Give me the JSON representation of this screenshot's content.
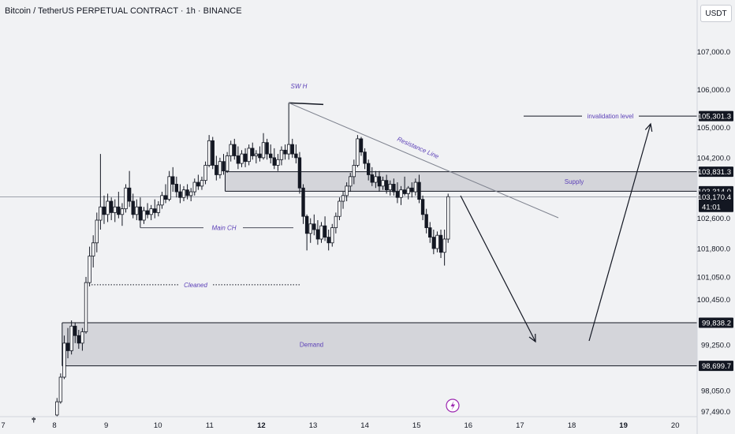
{
  "title": "Bitcoin / TetherUS PERPETUAL CONTRACT · 1h · BINANCE",
  "currency": "USDT",
  "chart_data": {
    "type": "candlestick",
    "x_ticks": [
      {
        "label": "7",
        "day": 7,
        "bold": false
      },
      {
        "label": "8",
        "day": 8,
        "bold": false
      },
      {
        "label": "9",
        "day": 9,
        "bold": false
      },
      {
        "label": "10",
        "day": 10,
        "bold": false
      },
      {
        "label": "11",
        "day": 11,
        "bold": false
      },
      {
        "label": "12",
        "day": 12,
        "bold": true
      },
      {
        "label": "13",
        "day": 13,
        "bold": false
      },
      {
        "label": "14",
        "day": 14,
        "bold": false
      },
      {
        "label": "15",
        "day": 15,
        "bold": false
      },
      {
        "label": "16",
        "day": 16,
        "bold": false
      },
      {
        "label": "17",
        "day": 17,
        "bold": false
      },
      {
        "label": "18",
        "day": 18,
        "bold": false
      },
      {
        "label": "19",
        "day": 19,
        "bold": true
      },
      {
        "label": "20",
        "day": 20,
        "bold": false
      }
    ],
    "y_ticks": [
      {
        "label": "107,000.0",
        "value": 107000
      },
      {
        "label": "106,000.0",
        "value": 106000
      },
      {
        "label": "105,000.0",
        "value": 105000
      },
      {
        "label": "104,200.0",
        "value": 104200
      },
      {
        "label": "102,600.0",
        "value": 102600
      },
      {
        "label": "101,800.0",
        "value": 101800
      },
      {
        "label": "101,050.0",
        "value": 101050
      },
      {
        "label": "100,450.0",
        "value": 100450
      },
      {
        "label": "99,250.0",
        "value": 99250
      },
      {
        "label": "98,050.0",
        "value": 98050
      },
      {
        "label": "97,490.0",
        "value": 97490
      }
    ],
    "price_levels": [
      {
        "label": "105,301.3",
        "value": 105301.3,
        "style": "dark"
      },
      {
        "label": "103,831.3",
        "value": 103831.3,
        "style": "dark"
      },
      {
        "label": "103,314.0",
        "value": 103314.0,
        "style": "dark"
      },
      {
        "label": "103,170.4",
        "value": 103170.4,
        "style": "dark",
        "sub": "41:01"
      },
      {
        "label": "99,838.2",
        "value": 99838.2,
        "style": "dark"
      },
      {
        "label": "98,699.7",
        "value": 98699.7,
        "style": "dark"
      }
    ],
    "zones": [
      {
        "label": "Supply",
        "top": 103831.3,
        "bottom": 103314.0,
        "day_start": 11.3,
        "day_end": 20.6
      },
      {
        "label": "Demand",
        "top": 99838.2,
        "bottom": 98699.7,
        "day_start": 8.15,
        "day_end": 20.6
      }
    ],
    "annotations": [
      {
        "label": "SW H",
        "day": 12.6,
        "value": 105850
      },
      {
        "label": "Main CH",
        "day": 11.3,
        "value": 102350
      },
      {
        "label": "Cleaned",
        "day": 10.7,
        "value": 101050
      },
      {
        "label": "Resistance Line",
        "day": 14.9,
        "value": 104250
      },
      {
        "label": "invalidation level",
        "day": 18.8,
        "value": 105301.3
      }
    ],
    "candles": [
      {
        "day": 7.6,
        "o": 97280,
        "h": 97340,
        "l": 97200,
        "c": 97310
      },
      {
        "day": 8.05,
        "o": 97400,
        "h": 97850,
        "l": 97350,
        "c": 97750
      },
      {
        "day": 8.12,
        "o": 97750,
        "h": 98500,
        "l": 97700,
        "c": 98400
      },
      {
        "day": 8.19,
        "o": 98400,
        "h": 99500,
        "l": 98350,
        "c": 99300
      },
      {
        "day": 8.26,
        "o": 99300,
        "h": 99700,
        "l": 98900,
        "c": 99100
      },
      {
        "day": 8.33,
        "o": 99100,
        "h": 99900,
        "l": 99000,
        "c": 99750
      },
      {
        "day": 8.4,
        "o": 99750,
        "h": 99850,
        "l": 99300,
        "c": 99500
      },
      {
        "day": 8.47,
        "o": 99500,
        "h": 99650,
        "l": 99150,
        "c": 99300
      },
      {
        "day": 8.54,
        "o": 99300,
        "h": 99700,
        "l": 99100,
        "c": 99600
      },
      {
        "day": 8.61,
        "o": 99600,
        "h": 101050,
        "l": 99550,
        "c": 100900
      },
      {
        "day": 8.68,
        "o": 100900,
        "h": 101850,
        "l": 100800,
        "c": 101600
      },
      {
        "day": 8.75,
        "o": 101600,
        "h": 102150,
        "l": 101300,
        "c": 101950
      },
      {
        "day": 8.82,
        "o": 101950,
        "h": 102750,
        "l": 101700,
        "c": 102550
      },
      {
        "day": 8.89,
        "o": 102550,
        "h": 104300,
        "l": 102300,
        "c": 102900
      },
      {
        "day": 8.96,
        "o": 102900,
        "h": 103200,
        "l": 102450,
        "c": 102700
      },
      {
        "day": 9.03,
        "o": 102700,
        "h": 103250,
        "l": 102500,
        "c": 103050
      },
      {
        "day": 9.1,
        "o": 103050,
        "h": 103150,
        "l": 102550,
        "c": 102750
      },
      {
        "day": 9.17,
        "o": 102750,
        "h": 103100,
        "l": 102500,
        "c": 102900
      },
      {
        "day": 9.24,
        "o": 102900,
        "h": 103300,
        "l": 102600,
        "c": 102700
      },
      {
        "day": 9.31,
        "o": 102700,
        "h": 103000,
        "l": 102400,
        "c": 102850
      },
      {
        "day": 9.38,
        "o": 102850,
        "h": 103500,
        "l": 102750,
        "c": 103400
      },
      {
        "day": 9.45,
        "o": 103400,
        "h": 103850,
        "l": 102900,
        "c": 103050
      },
      {
        "day": 9.52,
        "o": 103050,
        "h": 103250,
        "l": 102600,
        "c": 102700
      },
      {
        "day": 9.59,
        "o": 102700,
        "h": 103100,
        "l": 102550,
        "c": 102900
      },
      {
        "day": 9.66,
        "o": 102900,
        "h": 103150,
        "l": 102350,
        "c": 102550
      },
      {
        "day": 9.73,
        "o": 102550,
        "h": 102900,
        "l": 102450,
        "c": 102800
      },
      {
        "day": 9.8,
        "o": 102800,
        "h": 103000,
        "l": 102600,
        "c": 102700
      },
      {
        "day": 9.87,
        "o": 102700,
        "h": 102950,
        "l": 102550,
        "c": 102850
      },
      {
        "day": 9.94,
        "o": 102850,
        "h": 103100,
        "l": 102600,
        "c": 102750
      },
      {
        "day": 10.01,
        "o": 102750,
        "h": 103050,
        "l": 102650,
        "c": 102950
      },
      {
        "day": 10.08,
        "o": 102950,
        "h": 103300,
        "l": 102850,
        "c": 103200
      },
      {
        "day": 10.15,
        "o": 103200,
        "h": 103500,
        "l": 103000,
        "c": 103100
      },
      {
        "day": 10.22,
        "o": 103100,
        "h": 103850,
        "l": 103050,
        "c": 103700
      },
      {
        "day": 10.29,
        "o": 103700,
        "h": 103950,
        "l": 103300,
        "c": 103500
      },
      {
        "day": 10.36,
        "o": 103500,
        "h": 103700,
        "l": 103150,
        "c": 103300
      },
      {
        "day": 10.43,
        "o": 103300,
        "h": 103500,
        "l": 103000,
        "c": 103150
      },
      {
        "day": 10.5,
        "o": 103150,
        "h": 103450,
        "l": 103050,
        "c": 103350
      },
      {
        "day": 10.57,
        "o": 103350,
        "h": 103500,
        "l": 103100,
        "c": 103200
      },
      {
        "day": 10.64,
        "o": 103200,
        "h": 103400,
        "l": 103050,
        "c": 103300
      },
      {
        "day": 10.71,
        "o": 103300,
        "h": 103650,
        "l": 103200,
        "c": 103550
      },
      {
        "day": 10.78,
        "o": 103550,
        "h": 103750,
        "l": 103350,
        "c": 103450
      },
      {
        "day": 10.85,
        "o": 103450,
        "h": 103700,
        "l": 103350,
        "c": 103600
      },
      {
        "day": 10.92,
        "o": 103600,
        "h": 104100,
        "l": 103500,
        "c": 104000
      },
      {
        "day": 10.99,
        "o": 104000,
        "h": 104800,
        "l": 103950,
        "c": 104650
      },
      {
        "day": 11.06,
        "o": 104650,
        "h": 104750,
        "l": 103900,
        "c": 104000
      },
      {
        "day": 11.13,
        "o": 104000,
        "h": 104250,
        "l": 103600,
        "c": 103750
      },
      {
        "day": 11.2,
        "o": 103750,
        "h": 104200,
        "l": 103650,
        "c": 104100
      },
      {
        "day": 11.27,
        "o": 104100,
        "h": 104300,
        "l": 103750,
        "c": 103850
      },
      {
        "day": 11.34,
        "o": 103850,
        "h": 104350,
        "l": 103800,
        "c": 104250
      },
      {
        "day": 11.41,
        "o": 104250,
        "h": 104650,
        "l": 104100,
        "c": 104550
      },
      {
        "day": 11.48,
        "o": 104550,
        "h": 104700,
        "l": 104150,
        "c": 104250
      },
      {
        "day": 11.55,
        "o": 104250,
        "h": 104500,
        "l": 103900,
        "c": 104050
      },
      {
        "day": 11.62,
        "o": 104050,
        "h": 104400,
        "l": 103950,
        "c": 104300
      },
      {
        "day": 11.69,
        "o": 104300,
        "h": 104450,
        "l": 103950,
        "c": 104100
      },
      {
        "day": 11.76,
        "o": 104100,
        "h": 104550,
        "l": 104000,
        "c": 104450
      },
      {
        "day": 11.83,
        "o": 104450,
        "h": 104600,
        "l": 104150,
        "c": 104250
      },
      {
        "day": 11.9,
        "o": 104250,
        "h": 104400,
        "l": 104050,
        "c": 104300
      },
      {
        "day": 11.97,
        "o": 104300,
        "h": 104500,
        "l": 104100,
        "c": 104200
      },
      {
        "day": 12.04,
        "o": 104200,
        "h": 104850,
        "l": 104150,
        "c": 104600
      },
      {
        "day": 12.11,
        "o": 104600,
        "h": 104700,
        "l": 104150,
        "c": 104300
      },
      {
        "day": 12.18,
        "o": 104300,
        "h": 104550,
        "l": 104050,
        "c": 104200
      },
      {
        "day": 12.25,
        "o": 104200,
        "h": 104450,
        "l": 103900,
        "c": 104000
      },
      {
        "day": 12.32,
        "o": 104000,
        "h": 104300,
        "l": 103850,
        "c": 104150
      },
      {
        "day": 12.39,
        "o": 104150,
        "h": 104500,
        "l": 104000,
        "c": 104400
      },
      {
        "day": 12.46,
        "o": 104400,
        "h": 104550,
        "l": 104150,
        "c": 104300
      },
      {
        "day": 12.53,
        "o": 104300,
        "h": 105650,
        "l": 104150,
        "c": 104550
      },
      {
        "day": 12.6,
        "o": 104550,
        "h": 104700,
        "l": 104200,
        "c": 104300
      },
      {
        "day": 12.67,
        "o": 104300,
        "h": 104550,
        "l": 104050,
        "c": 104200
      },
      {
        "day": 12.74,
        "o": 104200,
        "h": 104350,
        "l": 103250,
        "c": 103400
      },
      {
        "day": 12.81,
        "o": 103400,
        "h": 103500,
        "l": 102450,
        "c": 102650
      },
      {
        "day": 12.88,
        "o": 102650,
        "h": 102700,
        "l": 101750,
        "c": 102200
      },
      {
        "day": 12.95,
        "o": 102200,
        "h": 102600,
        "l": 101950,
        "c": 102450
      },
      {
        "day": 13.02,
        "o": 102450,
        "h": 102700,
        "l": 102150,
        "c": 102300
      },
      {
        "day": 13.09,
        "o": 102300,
        "h": 102550,
        "l": 101900,
        "c": 102050
      },
      {
        "day": 13.16,
        "o": 102050,
        "h": 102500,
        "l": 101950,
        "c": 102400
      },
      {
        "day": 13.23,
        "o": 102400,
        "h": 102650,
        "l": 102000,
        "c": 102100
      },
      {
        "day": 13.3,
        "o": 102100,
        "h": 102300,
        "l": 101750,
        "c": 101950
      },
      {
        "day": 13.37,
        "o": 101950,
        "h": 102450,
        "l": 101850,
        "c": 102350
      },
      {
        "day": 13.44,
        "o": 102350,
        "h": 102750,
        "l": 102200,
        "c": 102650
      },
      {
        "day": 13.51,
        "o": 102650,
        "h": 103150,
        "l": 102550,
        "c": 103050
      },
      {
        "day": 13.58,
        "o": 103050,
        "h": 103300,
        "l": 102850,
        "c": 103200
      },
      {
        "day": 13.65,
        "o": 103200,
        "h": 103550,
        "l": 103050,
        "c": 103450
      },
      {
        "day": 13.72,
        "o": 103450,
        "h": 103800,
        "l": 103300,
        "c": 103700
      },
      {
        "day": 13.79,
        "o": 103700,
        "h": 104150,
        "l": 103500,
        "c": 104000
      },
      {
        "day": 13.86,
        "o": 104000,
        "h": 104800,
        "l": 103950,
        "c": 104700
      },
      {
        "day": 13.93,
        "o": 104700,
        "h": 104750,
        "l": 104250,
        "c": 104350
      },
      {
        "day": 14.0,
        "o": 104350,
        "h": 104450,
        "l": 103900,
        "c": 104050
      },
      {
        "day": 14.07,
        "o": 104050,
        "h": 104150,
        "l": 103600,
        "c": 103750
      },
      {
        "day": 14.14,
        "o": 103750,
        "h": 103950,
        "l": 103450,
        "c": 103550
      },
      {
        "day": 14.21,
        "o": 103550,
        "h": 103850,
        "l": 103400,
        "c": 103700
      },
      {
        "day": 14.28,
        "o": 103700,
        "h": 103850,
        "l": 103300,
        "c": 103450
      },
      {
        "day": 14.35,
        "o": 103450,
        "h": 103700,
        "l": 103350,
        "c": 103600
      },
      {
        "day": 14.42,
        "o": 103600,
        "h": 103750,
        "l": 103250,
        "c": 103350
      },
      {
        "day": 14.49,
        "o": 103350,
        "h": 103600,
        "l": 103200,
        "c": 103500
      },
      {
        "day": 14.56,
        "o": 103500,
        "h": 103650,
        "l": 103200,
        "c": 103300
      },
      {
        "day": 14.63,
        "o": 103300,
        "h": 103550,
        "l": 103000,
        "c": 103150
      },
      {
        "day": 14.7,
        "o": 103150,
        "h": 103450,
        "l": 102950,
        "c": 103350
      },
      {
        "day": 14.77,
        "o": 103350,
        "h": 103700,
        "l": 103200,
        "c": 103250
      },
      {
        "day": 14.84,
        "o": 103250,
        "h": 103450,
        "l": 103100,
        "c": 103400
      },
      {
        "day": 14.91,
        "o": 103400,
        "h": 103550,
        "l": 103150,
        "c": 103300
      },
      {
        "day": 14.98,
        "o": 103300,
        "h": 103650,
        "l": 103200,
        "c": 103550
      },
      {
        "day": 15.05,
        "o": 103550,
        "h": 103750,
        "l": 103000,
        "c": 103100
      },
      {
        "day": 15.12,
        "o": 103100,
        "h": 103200,
        "l": 102550,
        "c": 102700
      },
      {
        "day": 15.19,
        "o": 102700,
        "h": 102850,
        "l": 102200,
        "c": 102350
      },
      {
        "day": 15.26,
        "o": 102350,
        "h": 102500,
        "l": 101950,
        "c": 102100
      },
      {
        "day": 15.33,
        "o": 102100,
        "h": 102300,
        "l": 101650,
        "c": 101800
      },
      {
        "day": 15.4,
        "o": 101800,
        "h": 102250,
        "l": 101700,
        "c": 102150
      },
      {
        "day": 15.47,
        "o": 102150,
        "h": 102300,
        "l": 101550,
        "c": 101700
      },
      {
        "day": 15.54,
        "o": 101700,
        "h": 102300,
        "l": 101350,
        "c": 102050
      },
      {
        "day": 15.61,
        "o": 102050,
        "h": 103250,
        "l": 101950,
        "c": 103170
      }
    ]
  }
}
